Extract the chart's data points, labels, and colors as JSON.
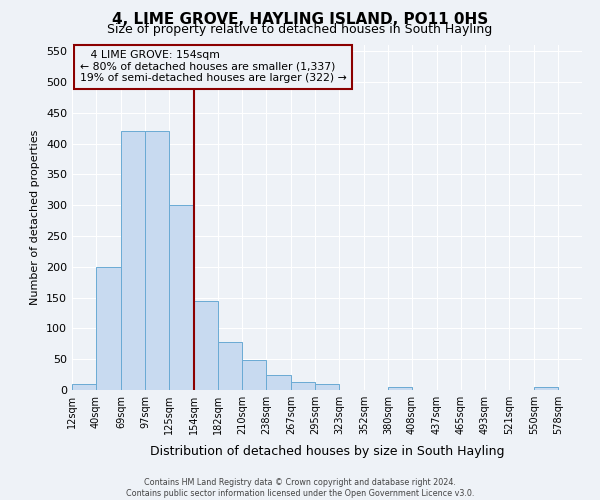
{
  "title": "4, LIME GROVE, HAYLING ISLAND, PO11 0HS",
  "subtitle": "Size of property relative to detached houses in South Hayling",
  "xlabel": "Distribution of detached houses by size in South Hayling",
  "ylabel": "Number of detached properties",
  "bar_lefts": [
    12,
    40,
    69,
    97,
    125,
    154,
    182,
    210,
    238,
    267,
    295,
    323,
    352,
    380,
    408,
    437,
    465,
    493,
    521,
    550
  ],
  "bar_widths": [
    28,
    29,
    28,
    28,
    29,
    28,
    28,
    28,
    29,
    28,
    28,
    29,
    28,
    28,
    29,
    28,
    28,
    28,
    29,
    28
  ],
  "bar_heights": [
    10,
    200,
    420,
    420,
    300,
    145,
    78,
    48,
    25,
    13,
    10,
    0,
    0,
    5,
    0,
    0,
    0,
    0,
    0,
    5
  ],
  "bar_color": "#c8daf0",
  "bar_edge_color": "#6aaad4",
  "vline_x": 154,
  "vline_color": "#8b0000",
  "xlim": [
    12,
    606
  ],
  "ylim": [
    0,
    560
  ],
  "yticks": [
    0,
    50,
    100,
    150,
    200,
    250,
    300,
    350,
    400,
    450,
    500,
    550
  ],
  "xtick_positions": [
    12,
    40,
    69,
    97,
    125,
    154,
    182,
    210,
    238,
    267,
    295,
    323,
    352,
    380,
    408,
    437,
    465,
    493,
    521,
    550,
    578
  ],
  "xtick_labels": [
    "12sqm",
    "40sqm",
    "69sqm",
    "97sqm",
    "125sqm",
    "154sqm",
    "182sqm",
    "210sqm",
    "238sqm",
    "267sqm",
    "295sqm",
    "323sqm",
    "352sqm",
    "380sqm",
    "408sqm",
    "437sqm",
    "465sqm",
    "493sqm",
    "521sqm",
    "550sqm",
    "578sqm"
  ],
  "annotation_title": "4 LIME GROVE: 154sqm",
  "annotation_line1": "← 80% of detached houses are smaller (1,337)",
  "annotation_line2": "19% of semi-detached houses are larger (322) →",
  "annotation_box_color": "#8b0000",
  "footer_line1": "Contains HM Land Registry data © Crown copyright and database right 2024.",
  "footer_line2": "Contains public sector information licensed under the Open Government Licence v3.0.",
  "background_color": "#eef2f7",
  "grid_color": "#ffffff",
  "title_fontsize": 11,
  "subtitle_fontsize": 9,
  "ylabel_fontsize": 8,
  "xlabel_fontsize": 9
}
